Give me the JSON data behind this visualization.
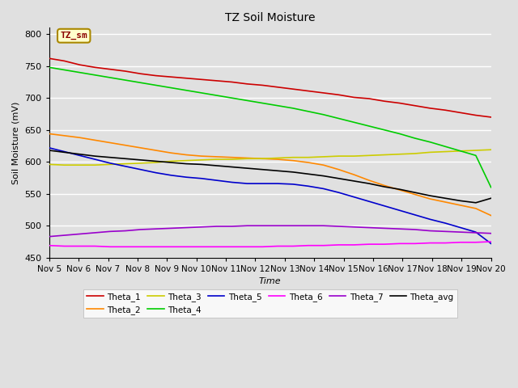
{
  "title": "TZ Soil Moisture",
  "xlabel": "Time",
  "ylabel": "Soil Moisture (mV)",
  "ylim": [
    450,
    810
  ],
  "xlim": [
    0,
    15
  ],
  "fig_width": 6.4,
  "fig_height": 4.8,
  "background_color": "#e0e0e0",
  "plot_bg_color": "#e0e0e0",
  "band_colors": [
    "#d8d8d8",
    "#e8e8e8"
  ],
  "grid_color": "white",
  "x_ticks": [
    0,
    1,
    2,
    3,
    4,
    5,
    6,
    7,
    8,
    9,
    10,
    11,
    12,
    13,
    14,
    15
  ],
  "x_labels": [
    "Nov 5",
    "Nov 6",
    "Nov 7",
    "Nov 8",
    "Nov 9",
    "Nov 10",
    "Nov 11",
    "Nov 12",
    "Nov 13",
    "Nov 14",
    "Nov 15",
    "Nov 16",
    "Nov 17",
    "Nov 18",
    "Nov 19",
    "Nov 20"
  ],
  "y_ticks": [
    450,
    500,
    550,
    600,
    650,
    700,
    750,
    800
  ],
  "series_order": [
    "Theta_1",
    "Theta_2",
    "Theta_3",
    "Theta_4",
    "Theta_5",
    "Theta_6",
    "Theta_7",
    "Theta_avg"
  ],
  "series": {
    "Theta_1": {
      "color": "#cc0000",
      "values": [
        762,
        758,
        752,
        748,
        745,
        742,
        738,
        735,
        733,
        731,
        729,
        727,
        725,
        722,
        720,
        717,
        714,
        711,
        708,
        705,
        701,
        699,
        695,
        692,
        688,
        684,
        681,
        677,
        673,
        670
      ]
    },
    "Theta_2": {
      "color": "#ff8800",
      "values": [
        644,
        641,
        638,
        634,
        630,
        626,
        622,
        618,
        614,
        611,
        609,
        608,
        607,
        606,
        605,
        604,
        602,
        599,
        595,
        588,
        580,
        571,
        563,
        556,
        549,
        542,
        537,
        532,
        527,
        516
      ]
    },
    "Theta_3": {
      "color": "#cccc00",
      "values": [
        596,
        595,
        595,
        595,
        596,
        597,
        598,
        599,
        601,
        602,
        603,
        604,
        604,
        605,
        605,
        606,
        607,
        607,
        608,
        609,
        609,
        610,
        611,
        612,
        613,
        615,
        616,
        617,
        618,
        619
      ]
    },
    "Theta_4": {
      "color": "#00cc00",
      "values": [
        748,
        744,
        740,
        736,
        732,
        728,
        724,
        720,
        716,
        712,
        708,
        704,
        700,
        696,
        692,
        688,
        684,
        679,
        674,
        668,
        662,
        656,
        650,
        644,
        637,
        631,
        624,
        617,
        610,
        560
      ]
    },
    "Theta_5": {
      "color": "#0000cc",
      "values": [
        622,
        616,
        610,
        604,
        598,
        593,
        588,
        583,
        579,
        576,
        574,
        571,
        568,
        566,
        566,
        566,
        565,
        562,
        558,
        552,
        545,
        538,
        531,
        524,
        517,
        510,
        504,
        497,
        490,
        472
      ]
    },
    "Theta_6": {
      "color": "#ff00ff",
      "values": [
        469,
        468,
        468,
        468,
        467,
        467,
        467,
        467,
        467,
        467,
        467,
        467,
        467,
        467,
        467,
        468,
        468,
        469,
        469,
        470,
        470,
        471,
        471,
        472,
        472,
        473,
        473,
        474,
        474,
        475
      ]
    },
    "Theta_7": {
      "color": "#9900cc",
      "values": [
        483,
        485,
        487,
        489,
        491,
        492,
        494,
        495,
        496,
        497,
        498,
        499,
        499,
        500,
        500,
        500,
        500,
        500,
        500,
        499,
        498,
        497,
        496,
        495,
        494,
        492,
        491,
        490,
        489,
        488
      ]
    },
    "Theta_avg": {
      "color": "#000000",
      "values": [
        618,
        615,
        612,
        609,
        607,
        605,
        603,
        601,
        599,
        597,
        596,
        594,
        592,
        590,
        588,
        586,
        584,
        581,
        578,
        574,
        570,
        566,
        561,
        557,
        552,
        547,
        543,
        539,
        536,
        543
      ]
    }
  }
}
